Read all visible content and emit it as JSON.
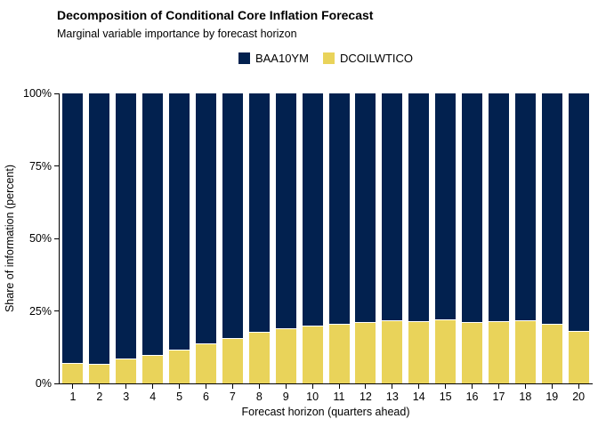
{
  "title": "Decomposition of Conditional Core Inflation Forecast",
  "subtitle": "Marginal variable importance by forecast horizon",
  "colors": {
    "background": "#ffffff",
    "axis": "#000000",
    "text": "#000000",
    "segment_separator": "#ffffff"
  },
  "chart_data": {
    "type": "bar",
    "stacked": true,
    "stacking": "percent",
    "title": "Decomposition of Conditional Core Inflation Forecast",
    "subtitle": "Marginal variable importance by forecast horizon",
    "xlabel": "Forecast horizon (quarters ahead)",
    "ylabel": "Share of information (percent)",
    "categories": [
      "1",
      "2",
      "3",
      "4",
      "5",
      "6",
      "7",
      "8",
      "9",
      "10",
      "11",
      "12",
      "13",
      "14",
      "15",
      "16",
      "17",
      "18",
      "19",
      "20"
    ],
    "series": [
      {
        "name": "BAA10YM",
        "color": "#02214f",
        "stack_position": "top",
        "values": [
          93.2,
          93.6,
          91.6,
          90.6,
          88.7,
          86.5,
          84.6,
          82.6,
          81.3,
          80.5,
          79.6,
          79.2,
          78.6,
          78.9,
          78.3,
          79.2,
          78.9,
          78.6,
          79.8,
          82.1
        ]
      },
      {
        "name": "DCOILWTICO",
        "color": "#e9d35a",
        "stack_position": "bottom",
        "values": [
          6.8,
          6.4,
          8.4,
          9.4,
          11.3,
          13.5,
          15.4,
          17.4,
          18.7,
          19.5,
          20.4,
          20.8,
          21.4,
          21.1,
          21.7,
          20.8,
          21.1,
          21.4,
          20.2,
          17.9
        ]
      }
    ],
    "ylim": [
      0,
      100
    ],
    "y_ticks": [
      0,
      25,
      50,
      75,
      100
    ],
    "y_tick_labels": [
      "0%",
      "25%",
      "50%",
      "75%",
      "100%"
    ],
    "grid": false,
    "legend_position": "top-center"
  }
}
